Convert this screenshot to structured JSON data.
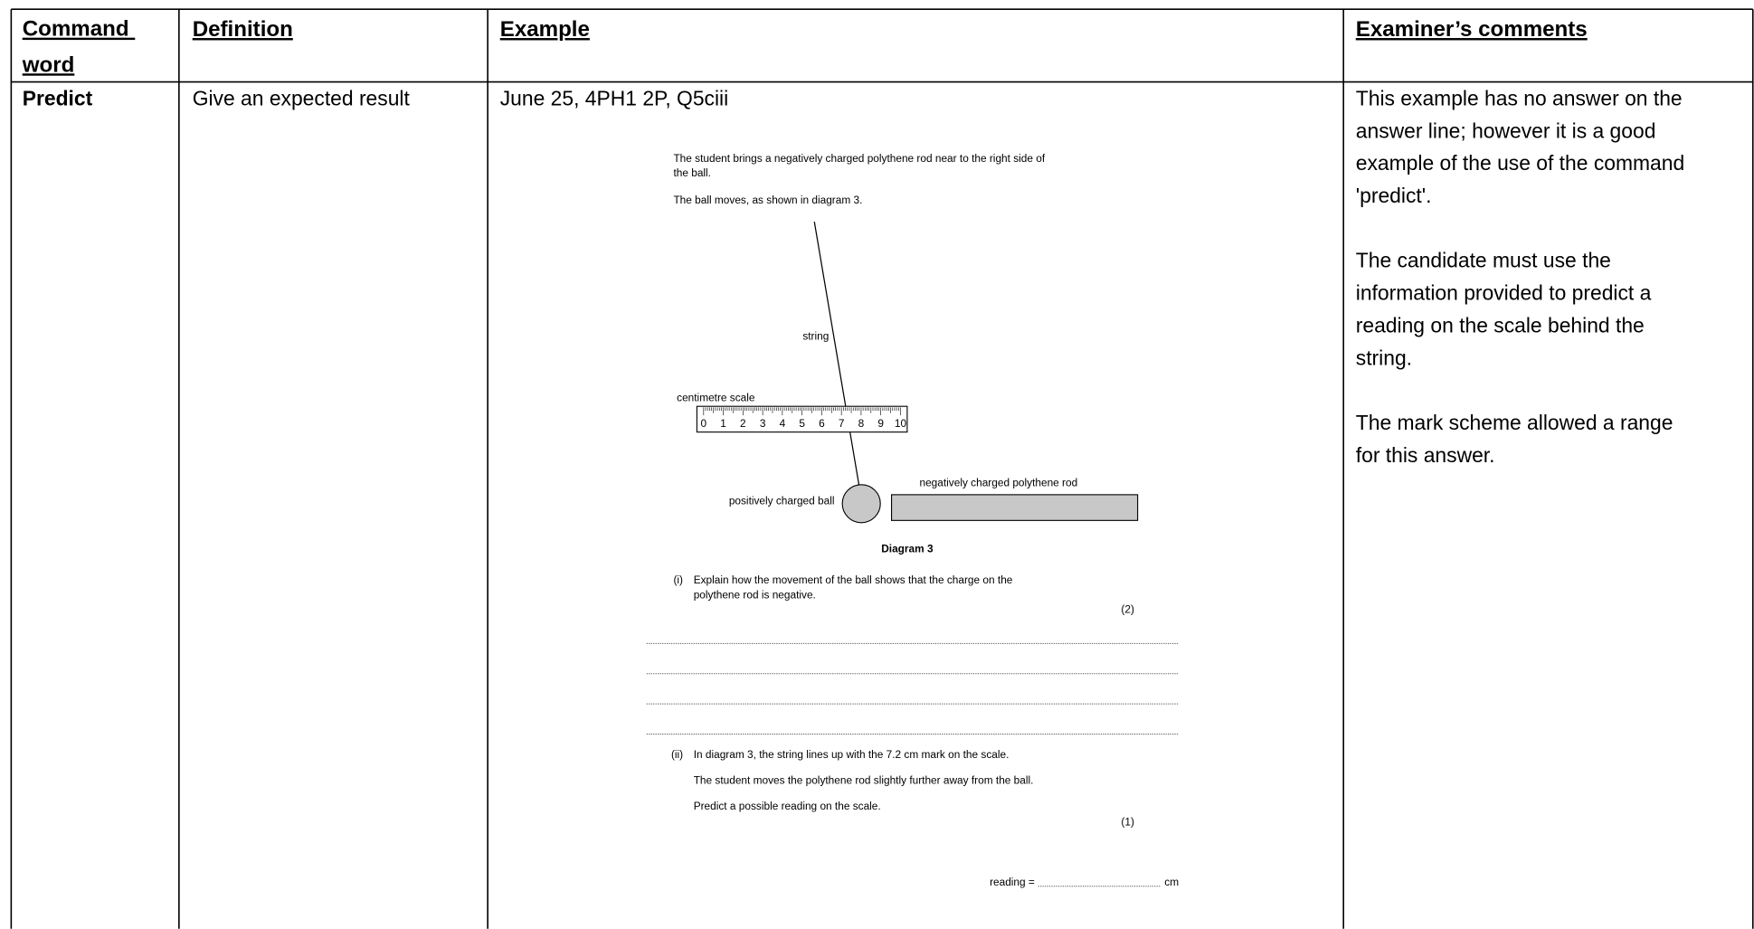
{
  "header": [
    "Command word",
    "Definition",
    "Example",
    "Examiner’s comments"
  ],
  "row": {
    "command": "Predict",
    "definition": "Give an expected result",
    "example_ref": "June 25, 4PH1 2P, Q5ciii",
    "comments": [
      [
        "This example has no answer on the",
        "answer line; however it is a good",
        "example of the use of the command",
        "'predict'."
      ],
      [
        "The candidate must use the",
        "information provided to predict a",
        "reading on the scale behind the",
        "string."
      ],
      [
        "The mark scheme allowed a range",
        "for this answer."
      ]
    ]
  },
  "question": {
    "intro": [
      "The student brings a negatively charged polythene rod near to the right side of",
      "the ball.",
      "The ball moves, as shown in diagram 3."
    ],
    "string_label": "string",
    "scale_label": "centimetre scale",
    "scale_numbers": [
      "0",
      "1",
      "2",
      "3",
      "4",
      "5",
      "6",
      "7",
      "8",
      "9",
      "10"
    ],
    "ball_label": "positively charged ball",
    "rod_label": "negatively charged polythene rod",
    "caption": "Diagram 3",
    "part_i": {
      "number": "(i)",
      "lines": [
        "Explain how the movement of the ball shows that the charge on the",
        "polythene rod is negative."
      ],
      "marks": "(2)"
    },
    "part_ii": {
      "number": "(ii)",
      "lines": [
        "In diagram 3, the string lines up with the 7.2 cm mark on the scale.",
        "The student moves the polythene rod slightly further away from the ball.",
        "Predict a possible reading on the scale."
      ],
      "marks": "(1)"
    },
    "answer_prefix": "reading =",
    "answer_unit": "cm"
  }
}
